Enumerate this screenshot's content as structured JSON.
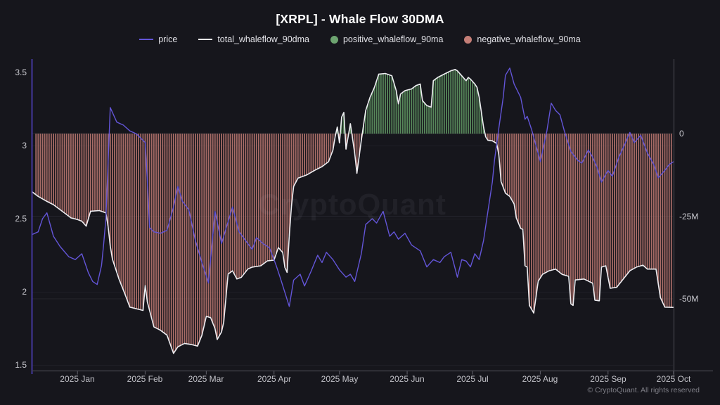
{
  "title": "[XRPL] - Whale Flow 30DMA",
  "legend": {
    "items": [
      {
        "label": "price",
        "marker": "line",
        "color": "#6355d8"
      },
      {
        "label": "total_whaleflow_90dma",
        "marker": "line",
        "color": "#ededf1"
      },
      {
        "label": "positive_whaleflow_90ma",
        "marker": "dot",
        "color": "#6da470"
      },
      {
        "label": "negative_whaleflow_90ma",
        "marker": "dot",
        "color": "#c47e77"
      }
    ]
  },
  "watermark": "CryptoQuant",
  "footer": {
    "copyright": "© CryptoQuant. All rights reserved"
  },
  "axes": {
    "left": {
      "labels": [
        "3.5",
        "3",
        "2.5",
        "2",
        "1.5"
      ],
      "values": [
        3.5,
        3,
        2.5,
        2,
        1.5
      ]
    },
    "right": {
      "labels": [
        "0",
        "-25M",
        "-50M"
      ],
      "values": [
        0,
        -25,
        -50
      ]
    },
    "bottom": {
      "labels": [
        "2025 Jan",
        "2025 Feb",
        "2025 Mar",
        "2025 Apr",
        "2025 May",
        "2025 Jun",
        "2025 Jul",
        "2025 Aug",
        "2025 Sep",
        "2025 Oct"
      ]
    }
  },
  "chart_data": {
    "type": "mixed",
    "x_range": [
      "2024-12-11",
      "2025-10-01"
    ],
    "ylim_left": [
      1.46,
      3.59
    ],
    "ylim_right_millions": [
      -71.5,
      22.5
    ],
    "grid": "faint horizontal lines at axis ticks",
    "legend_position": "top-center",
    "series": [
      {
        "name": "price",
        "type": "line",
        "axis": "left",
        "color": "#6355d8",
        "points": [
          [
            "2024-12-11",
            2.39
          ],
          [
            "2024-12-14",
            2.41
          ],
          [
            "2024-12-16",
            2.5
          ],
          [
            "2024-12-18",
            2.54
          ],
          [
            "2024-12-21",
            2.38
          ],
          [
            "2024-12-24",
            2.31
          ],
          [
            "2024-12-28",
            2.24
          ],
          [
            "2024-12-31",
            2.22
          ],
          [
            "2025-01-03",
            2.26
          ],
          [
            "2025-01-06",
            2.13
          ],
          [
            "2025-01-08",
            2.07
          ],
          [
            "2025-01-10",
            2.05
          ],
          [
            "2025-01-12",
            2.18
          ],
          [
            "2025-01-13",
            2.33
          ],
          [
            "2025-01-14",
            2.5
          ],
          [
            "2025-01-16",
            3.26
          ],
          [
            "2025-01-19",
            3.16
          ],
          [
            "2025-01-22",
            3.14
          ],
          [
            "2025-01-25",
            3.1
          ],
          [
            "2025-01-28",
            3.08
          ],
          [
            "2025-02-01",
            3.02
          ],
          [
            "2025-02-02",
            2.75
          ],
          [
            "2025-02-03",
            2.44
          ],
          [
            "2025-02-05",
            2.41
          ],
          [
            "2025-02-08",
            2.4
          ],
          [
            "2025-02-11",
            2.42
          ],
          [
            "2025-02-14",
            2.58
          ],
          [
            "2025-02-16",
            2.72
          ],
          [
            "2025-02-18",
            2.62
          ],
          [
            "2025-02-21",
            2.56
          ],
          [
            "2025-02-24",
            2.35
          ],
          [
            "2025-02-27",
            2.2
          ],
          [
            "2025-03-02",
            2.06
          ],
          [
            "2025-03-05",
            2.55
          ],
          [
            "2025-03-08",
            2.33
          ],
          [
            "2025-03-11",
            2.48
          ],
          [
            "2025-03-13",
            2.58
          ],
          [
            "2025-03-16",
            2.41
          ],
          [
            "2025-03-19",
            2.35
          ],
          [
            "2025-03-22",
            2.29
          ],
          [
            "2025-03-24",
            2.37
          ],
          [
            "2025-03-27",
            2.33
          ],
          [
            "2025-03-30",
            2.3
          ],
          [
            "2025-04-02",
            2.18
          ],
          [
            "2025-04-04",
            2.09
          ],
          [
            "2025-04-08",
            1.9
          ],
          [
            "2025-04-10",
            2.08
          ],
          [
            "2025-04-13",
            2.12
          ],
          [
            "2025-04-15",
            2.04
          ],
          [
            "2025-04-18",
            2.14
          ],
          [
            "2025-04-21",
            2.25
          ],
          [
            "2025-04-23",
            2.2
          ],
          [
            "2025-04-25",
            2.27
          ],
          [
            "2025-04-28",
            2.22
          ],
          [
            "2025-05-01",
            2.15
          ],
          [
            "2025-05-04",
            2.1
          ],
          [
            "2025-05-06",
            2.12
          ],
          [
            "2025-05-08",
            2.07
          ],
          [
            "2025-05-11",
            2.26
          ],
          [
            "2025-05-13",
            2.46
          ],
          [
            "2025-05-16",
            2.5
          ],
          [
            "2025-05-18",
            2.47
          ],
          [
            "2025-05-21",
            2.55
          ],
          [
            "2025-05-24",
            2.38
          ],
          [
            "2025-05-26",
            2.41
          ],
          [
            "2025-05-28",
            2.36
          ],
          [
            "2025-05-31",
            2.4
          ],
          [
            "2025-06-03",
            2.32
          ],
          [
            "2025-06-07",
            2.28
          ],
          [
            "2025-06-10",
            2.17
          ],
          [
            "2025-06-13",
            2.22
          ],
          [
            "2025-06-16",
            2.2
          ],
          [
            "2025-06-18",
            2.24
          ],
          [
            "2025-06-21",
            2.27
          ],
          [
            "2025-06-24",
            2.1
          ],
          [
            "2025-06-26",
            2.22
          ],
          [
            "2025-06-28",
            2.21
          ],
          [
            "2025-06-30",
            2.17
          ],
          [
            "2025-07-02",
            2.26
          ],
          [
            "2025-07-04",
            2.22
          ],
          [
            "2025-07-06",
            2.35
          ],
          [
            "2025-07-08",
            2.55
          ],
          [
            "2025-07-10",
            2.75
          ],
          [
            "2025-07-11",
            2.9
          ],
          [
            "2025-07-13",
            3.12
          ],
          [
            "2025-07-15",
            3.33
          ],
          [
            "2025-07-16",
            3.48
          ],
          [
            "2025-07-18",
            3.53
          ],
          [
            "2025-07-20",
            3.42
          ],
          [
            "2025-07-23",
            3.33
          ],
          [
            "2025-07-25",
            3.18
          ],
          [
            "2025-07-26",
            3.2
          ],
          [
            "2025-07-28",
            3.11
          ],
          [
            "2025-07-30",
            3.0
          ],
          [
            "2025-08-01",
            2.89
          ],
          [
            "2025-08-04",
            3.1
          ],
          [
            "2025-08-06",
            3.29
          ],
          [
            "2025-08-08",
            3.24
          ],
          [
            "2025-08-10",
            3.21
          ],
          [
            "2025-08-12",
            3.1
          ],
          [
            "2025-08-15",
            2.96
          ],
          [
            "2025-08-18",
            2.9
          ],
          [
            "2025-08-20",
            2.88
          ],
          [
            "2025-08-23",
            2.97
          ],
          [
            "2025-08-25",
            2.92
          ],
          [
            "2025-08-27",
            2.85
          ],
          [
            "2025-08-29",
            2.75
          ],
          [
            "2025-09-01",
            2.83
          ],
          [
            "2025-09-03",
            2.79
          ],
          [
            "2025-09-06",
            2.92
          ],
          [
            "2025-09-09",
            3.02
          ],
          [
            "2025-09-11",
            3.09
          ],
          [
            "2025-09-13",
            3.02
          ],
          [
            "2025-09-16",
            3.07
          ],
          [
            "2025-09-19",
            2.95
          ],
          [
            "2025-09-22",
            2.87
          ],
          [
            "2025-09-24",
            2.78
          ],
          [
            "2025-09-27",
            2.83
          ],
          [
            "2025-09-29",
            2.87
          ],
          [
            "2025-10-01",
            2.89
          ]
        ]
      },
      {
        "name": "total_whaleflow_90dma",
        "type": "line",
        "axis": "right",
        "unit": "M",
        "color": "#ededf1",
        "points": [
          [
            "2024-12-11",
            -17.5
          ],
          [
            "2024-12-14",
            -19
          ],
          [
            "2024-12-18",
            -20.5
          ],
          [
            "2024-12-21",
            -21.5
          ],
          [
            "2024-12-24",
            -23
          ],
          [
            "2024-12-27",
            -24.5
          ],
          [
            "2024-12-29",
            -25.5
          ],
          [
            "2025-01-01",
            -26
          ],
          [
            "2025-01-03",
            -26.5
          ],
          [
            "2025-01-05",
            -28
          ],
          [
            "2025-01-07",
            -23.5
          ],
          [
            "2025-01-11",
            -23.3
          ],
          [
            "2025-01-14",
            -24
          ],
          [
            "2025-01-15",
            -28
          ],
          [
            "2025-01-16",
            -34
          ],
          [
            "2025-01-17",
            -38
          ],
          [
            "2025-01-20",
            -44
          ],
          [
            "2025-01-23",
            -49
          ],
          [
            "2025-01-25",
            -52.5
          ],
          [
            "2025-01-28",
            -53
          ],
          [
            "2025-01-31",
            -53.5
          ],
          [
            "2025-02-01",
            -46
          ],
          [
            "2025-02-02",
            -51
          ],
          [
            "2025-02-05",
            -58.5
          ],
          [
            "2025-02-08",
            -59.5
          ],
          [
            "2025-02-11",
            -61
          ],
          [
            "2025-02-14",
            -66.5
          ],
          [
            "2025-02-16",
            -64.5
          ],
          [
            "2025-02-19",
            -63.5
          ],
          [
            "2025-02-22",
            -63.8
          ],
          [
            "2025-02-25",
            -64.3
          ],
          [
            "2025-02-27",
            -61
          ],
          [
            "2025-03-01",
            -55.3
          ],
          [
            "2025-03-03",
            -55.7
          ],
          [
            "2025-03-05",
            -59
          ],
          [
            "2025-03-06",
            -62.3
          ],
          [
            "2025-03-08",
            -60
          ],
          [
            "2025-03-09",
            -57
          ],
          [
            "2025-03-11",
            -42.5
          ],
          [
            "2025-03-13",
            -41.5
          ],
          [
            "2025-03-15",
            -44
          ],
          [
            "2025-03-17",
            -43.5
          ],
          [
            "2025-03-20",
            -41
          ],
          [
            "2025-03-22",
            -40.4
          ],
          [
            "2025-03-26",
            -40
          ],
          [
            "2025-03-29",
            -38.5
          ],
          [
            "2025-04-01",
            -38.3
          ],
          [
            "2025-04-03",
            -34.5
          ],
          [
            "2025-04-05",
            -36
          ],
          [
            "2025-04-06",
            -40.5
          ],
          [
            "2025-04-07",
            -42
          ],
          [
            "2025-04-08",
            -31
          ],
          [
            "2025-04-09",
            -22
          ],
          [
            "2025-04-10",
            -16
          ],
          [
            "2025-04-12",
            -13.5
          ],
          [
            "2025-04-16",
            -12.5
          ],
          [
            "2025-04-20",
            -11
          ],
          [
            "2025-04-23",
            -10
          ],
          [
            "2025-04-26",
            -8.5
          ],
          [
            "2025-04-28",
            -5
          ],
          [
            "2025-04-29",
            -1
          ],
          [
            "2025-04-30",
            2
          ],
          [
            "2025-05-01",
            -2.8
          ],
          [
            "2025-05-02",
            5
          ],
          [
            "2025-05-03",
            6.4
          ],
          [
            "2025-05-04",
            -4.7
          ],
          [
            "2025-05-06",
            3
          ],
          [
            "2025-05-08",
            -6
          ],
          [
            "2025-05-09",
            -12
          ],
          [
            "2025-05-11",
            -2
          ],
          [
            "2025-05-13",
            7
          ],
          [
            "2025-05-15",
            11
          ],
          [
            "2025-05-17",
            14
          ],
          [
            "2025-05-19",
            18
          ],
          [
            "2025-05-22",
            18.2
          ],
          [
            "2025-05-25",
            17.5
          ],
          [
            "2025-05-27",
            13
          ],
          [
            "2025-05-28",
            9
          ],
          [
            "2025-05-29",
            12
          ],
          [
            "2025-05-31",
            13
          ],
          [
            "2025-06-03",
            13.5
          ],
          [
            "2025-06-05",
            14.5
          ],
          [
            "2025-06-07",
            15
          ],
          [
            "2025-06-08",
            10
          ],
          [
            "2025-06-10",
            8.5
          ],
          [
            "2025-06-12",
            8
          ],
          [
            "2025-06-13",
            16
          ],
          [
            "2025-06-15",
            17
          ],
          [
            "2025-06-18",
            18
          ],
          [
            "2025-06-21",
            19
          ],
          [
            "2025-06-23",
            19.4
          ],
          [
            "2025-06-24",
            19
          ],
          [
            "2025-06-26",
            17.5
          ],
          [
            "2025-06-28",
            16
          ],
          [
            "2025-06-29",
            17
          ],
          [
            "2025-06-30",
            16.5
          ],
          [
            "2025-07-02",
            15
          ],
          [
            "2025-07-03",
            14
          ],
          [
            "2025-07-04",
            11
          ],
          [
            "2025-07-06",
            2
          ],
          [
            "2025-07-07",
            -1
          ],
          [
            "2025-07-08",
            -2
          ],
          [
            "2025-07-10",
            -2.2
          ],
          [
            "2025-07-12",
            -3
          ],
          [
            "2025-07-13",
            -6.5
          ],
          [
            "2025-07-14",
            -14.5
          ],
          [
            "2025-07-16",
            -18
          ],
          [
            "2025-07-18",
            -19
          ],
          [
            "2025-07-20",
            -21.3
          ],
          [
            "2025-07-21",
            -25.5
          ],
          [
            "2025-07-23",
            -28.7
          ],
          [
            "2025-07-24",
            -29
          ],
          [
            "2025-07-25",
            -40
          ],
          [
            "2025-07-26",
            -40.4
          ],
          [
            "2025-07-27",
            -52
          ],
          [
            "2025-07-29",
            -54.3
          ],
          [
            "2025-07-31",
            -44.7
          ],
          [
            "2025-08-02",
            -42.6
          ],
          [
            "2025-08-05",
            -41.5
          ],
          [
            "2025-08-08",
            -41
          ],
          [
            "2025-08-11",
            -42.6
          ],
          [
            "2025-08-14",
            -43.2
          ],
          [
            "2025-08-15",
            -51.5
          ],
          [
            "2025-08-16",
            -52
          ],
          [
            "2025-08-17",
            -44.3
          ],
          [
            "2025-08-21",
            -44
          ],
          [
            "2025-08-25",
            -45.3
          ],
          [
            "2025-08-26",
            -50.4
          ],
          [
            "2025-08-28",
            -50.6
          ],
          [
            "2025-08-29",
            -40.4
          ],
          [
            "2025-08-31",
            -40
          ],
          [
            "2025-09-02",
            -46.8
          ],
          [
            "2025-09-05",
            -46.5
          ],
          [
            "2025-09-08",
            -44
          ],
          [
            "2025-09-11",
            -41.5
          ],
          [
            "2025-09-14",
            -40.4
          ],
          [
            "2025-09-17",
            -39.8
          ],
          [
            "2025-09-19",
            -41
          ],
          [
            "2025-09-23",
            -41
          ],
          [
            "2025-09-25",
            -49.6
          ],
          [
            "2025-09-27",
            -52.5
          ],
          [
            "2025-10-01",
            -52.6
          ]
        ]
      },
      {
        "name": "whaleflow_bars",
        "type": "bar",
        "axis": "right",
        "unit": "M",
        "derived_from": "total_whaleflow_90dma",
        "note": "daily vertical bars from 0 to the total_whaleflow_90dma value",
        "positive_color": "#649c66",
        "negative_color": "#bf7a73"
      }
    ]
  }
}
